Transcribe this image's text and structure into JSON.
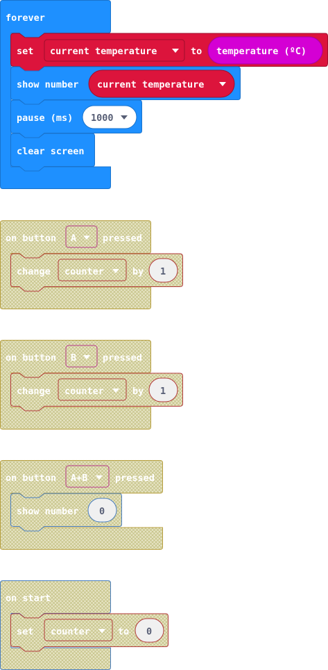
{
  "colors": {
    "basic_blue": "#1e90ff",
    "basic_blue_stroke": "#1a73cc",
    "variables_red": "#dc143c",
    "variables_red_stroke": "#9e0e2b",
    "input_magenta": "#d400d4",
    "disabled_fill": "#e9e5cc",
    "disabled_hatch": "#bfbf7a",
    "disabled_stroke_input": "#b83a8c",
    "disabled_stroke_var": "#b23a3a",
    "pill_bg": "#f0f0f0"
  },
  "forever": {
    "label": "forever",
    "set_block": {
      "label": "set",
      "var": "current temperature",
      "to": "to",
      "value": "temperature (ºC)"
    },
    "show_block": {
      "label": "show number",
      "var": "current temperature"
    },
    "pause_block": {
      "label": "pause (ms)",
      "value": "1000"
    },
    "clear_block": {
      "label": "clear screen"
    }
  },
  "on_button_a": {
    "label_prefix": "on button",
    "button": "A",
    "label_suffix": "pressed",
    "change_block": {
      "label": "change",
      "var": "counter",
      "by": "by",
      "value": "1"
    }
  },
  "on_button_b": {
    "label_prefix": "on button",
    "button": "B",
    "label_suffix": "pressed",
    "change_block": {
      "label": "change",
      "var": "counter",
      "by": "by",
      "value": "1"
    }
  },
  "on_button_ab": {
    "label_prefix": "on button",
    "button": "A+B",
    "label_suffix": "pressed",
    "show_block": {
      "label": "show number",
      "value": "0"
    }
  },
  "on_start": {
    "label": "on start",
    "set_block": {
      "label": "set",
      "var": "counter",
      "to": "to",
      "value": "0"
    }
  },
  "icons": {
    "dropdown": "caret-down-icon"
  }
}
